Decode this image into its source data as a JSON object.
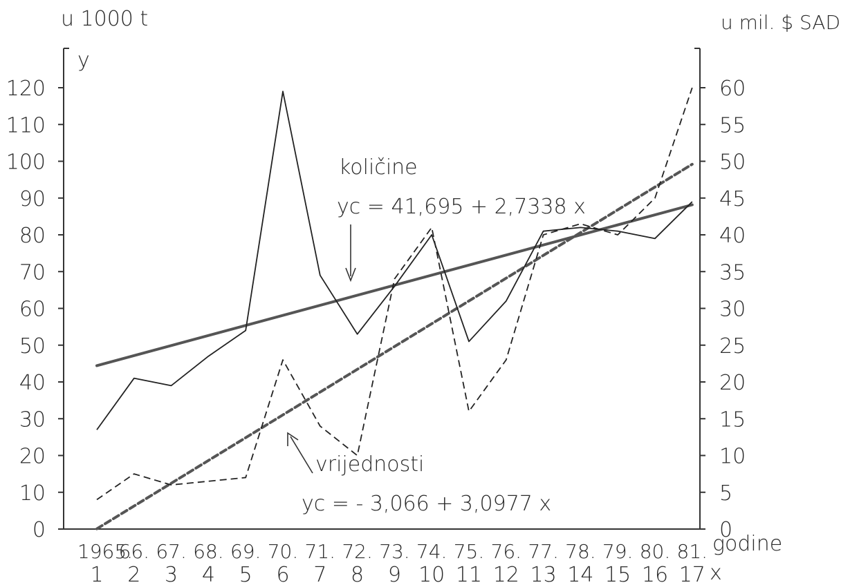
{
  "labels": {
    "left_unit": "u 1000 t",
    "right_unit": "u mil. $ SAD",
    "y_axis": "y",
    "x_axis": "x",
    "x_caption": "godine"
  },
  "annotations": {
    "quantities_label": "količine",
    "quantities_equation": "yc = 41,695 + 2,7338 x",
    "values_label": "vrijednosti",
    "values_equation": "yc = - 3,066 + 3,0977 x"
  },
  "chart_data": {
    "type": "line",
    "title": "",
    "xlabel": "godine",
    "ylabel_left": "u 1000 t",
    "ylabel_right": "u mil. $ SAD",
    "year_labels": [
      "1965.",
      "66.",
      "67.",
      "68.",
      "69.",
      "70.",
      "71.",
      "72.",
      "73.",
      "74.",
      "75.",
      "76.",
      "77.",
      "78.",
      "79.",
      "80.",
      "81."
    ],
    "x": [
      1,
      2,
      3,
      4,
      5,
      6,
      7,
      8,
      9,
      10,
      11,
      12,
      13,
      14,
      15,
      16,
      17
    ],
    "left_ticks": [
      0,
      10,
      20,
      30,
      40,
      50,
      60,
      70,
      80,
      90,
      100,
      110,
      120
    ],
    "right_ticks": [
      0,
      5,
      10,
      15,
      20,
      25,
      30,
      35,
      40,
      45,
      50,
      55,
      60
    ],
    "ylim_left": [
      0,
      120
    ],
    "ylim_right": [
      0,
      60
    ],
    "grid": false,
    "series": [
      {
        "key": "kolicine",
        "axis": "left",
        "style": "solid",
        "values": [
          27,
          41,
          39,
          47,
          54,
          119,
          69,
          53,
          66,
          80,
          51,
          62,
          81,
          82,
          81,
          79,
          89
        ]
      },
      {
        "key": "vrijednosti",
        "axis": "right",
        "style": "dashed",
        "values": [
          4,
          7.5,
          6,
          6.5,
          7,
          23,
          14,
          10,
          34,
          41,
          16,
          23,
          40,
          41.5,
          40,
          45,
          60
        ]
      }
    ],
    "trends": [
      {
        "key": "kolicine_trend",
        "axis": "left",
        "style": "solid-thick",
        "intercept": 41.695,
        "slope": 2.7338
      },
      {
        "key": "vrijednosti_trend",
        "axis": "right",
        "style": "dashed-thick",
        "intercept": -3.066,
        "slope": 3.0977
      }
    ]
  }
}
